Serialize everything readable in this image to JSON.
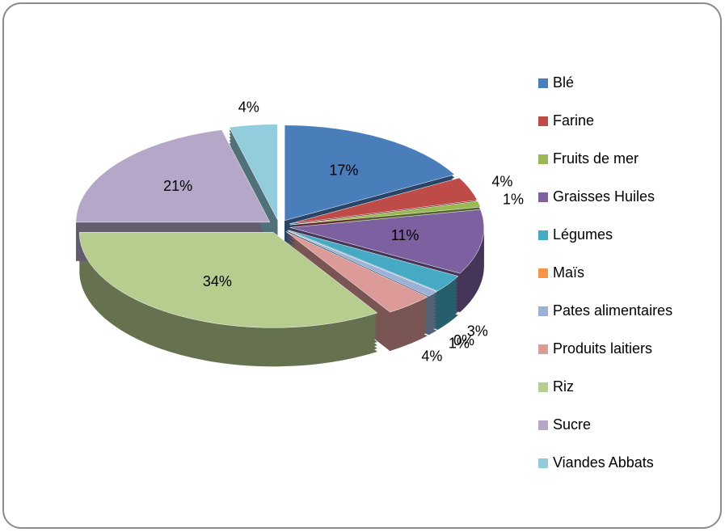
{
  "chart_data": {
    "type": "pie",
    "categories": [
      "Blé",
      "Farine",
      "Fruits de mer",
      "Graisses Huiles",
      "Légumes",
      "Maïs",
      "Pates alimentaires",
      "Produits laitiers",
      "Riz",
      "Sucre",
      "Viandes Abbats"
    ],
    "values": [
      17,
      4,
      1,
      11,
      3,
      0,
      1,
      4,
      34,
      21,
      4
    ],
    "value_labels": [
      "17%",
      "4%",
      "1%",
      "11%",
      "3%",
      "0%",
      "1%",
      "4%",
      "34%",
      "21%",
      "4%"
    ],
    "colors": [
      "#4a7ebb",
      "#be4b48",
      "#98b954",
      "#7d60a0",
      "#46aac5",
      "#f79646",
      "#9bb1d8",
      "#dc9a98",
      "#b7cd8f",
      "#b4a7c8",
      "#93cddd"
    ],
    "legend": "right"
  }
}
